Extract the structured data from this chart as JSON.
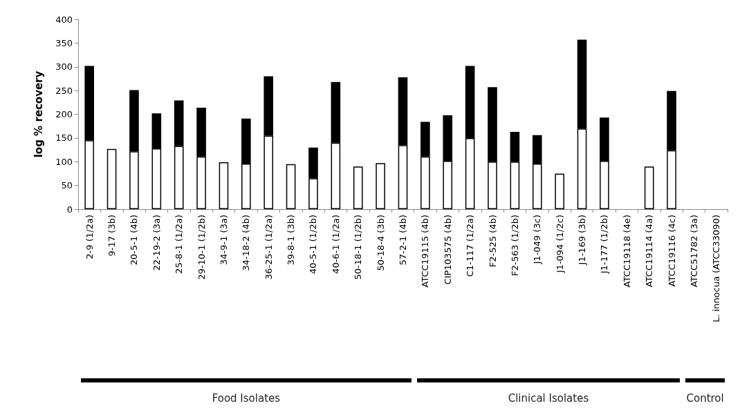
{
  "chart_data": {
    "type": "bar",
    "stacked": true,
    "ylabel": "log % recovery",
    "categories": [
      "2-9 (1/2a)",
      "9-17 (3b)",
      "20-5-1 (4b)",
      "22-19-2 (3a)",
      "25-8-1 (1/2a)",
      "29-10-1 (1/2b)",
      "34-9-1 (3a)",
      "34-18-2 (4b)",
      "36-25-1 (1/2a)",
      "39-8-1 (3b)",
      "40-5-1 (1/2b)",
      "40-6-1 (1/2a)",
      "50-18-1 (1/2b)",
      "50-18-4 (3b)",
      "57-2-1 (4b)",
      "ATCC19115 (4b)",
      "CIP103575 (4b)",
      "C1-117 (1/2a)",
      "F2-525 (4b)",
      "F2-563 (1/2b)",
      "J1-049 (3c)",
      "J1-094 (1/2c)",
      "J1-169 (3b)",
      "J1-177 (1/2b)",
      "ATCC19118 (4e)",
      "ATCC19114 (4a)",
      "ATCC19116 (4c)",
      "ATCC51782 (3a)",
      "L. innocua (ATCC33090)"
    ],
    "series": [
      {
        "color": "#ffffff",
        "values": [
          145,
          127,
          122,
          128,
          133,
          111,
          99,
          96,
          155,
          95,
          65,
          140,
          90,
          97,
          135,
          111,
          102,
          150,
          100,
          100,
          96,
          75,
          170,
          102,
          null,
          90,
          124,
          null,
          null
        ]
      },
      {
        "color": "#000000",
        "values": [
          157,
          null,
          129,
          74,
          96,
          103,
          null,
          95,
          125,
          null,
          65,
          128,
          null,
          null,
          143,
          73,
          96,
          152,
          157,
          63,
          60,
          null,
          187,
          91,
          null,
          null,
          125,
          null,
          null
        ]
      }
    ],
    "ylim": [
      0,
      400
    ],
    "yticks": [
      0,
      50,
      100,
      150,
      200,
      250,
      300,
      350,
      400
    ],
    "grid": false,
    "annotations": [
      "Food Isolates",
      "Clinical Isolates",
      "Control"
    ]
  }
}
